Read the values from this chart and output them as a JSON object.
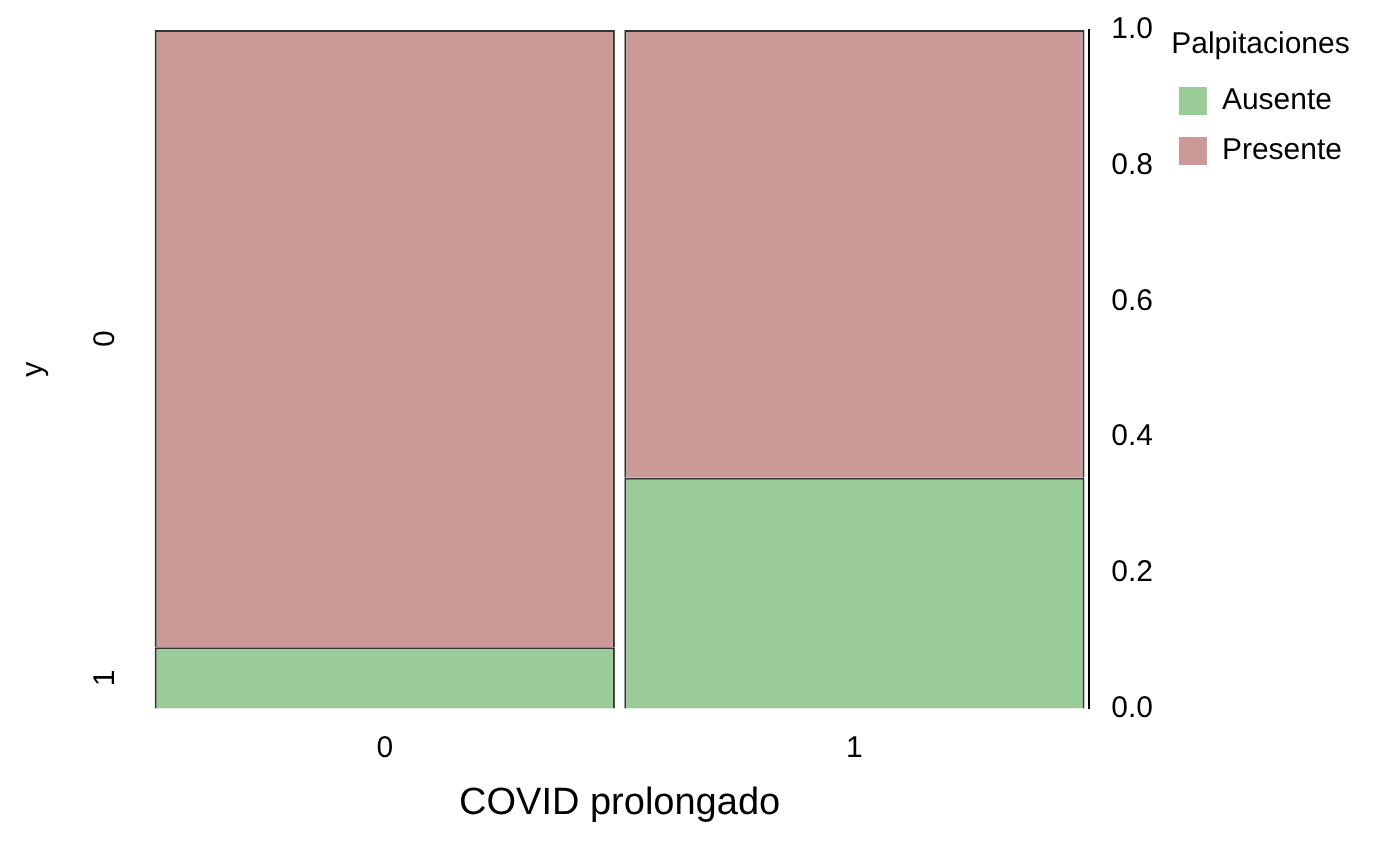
{
  "chart_data": {
    "type": "bar",
    "stacked": true,
    "xlabel": "COVID prolongado",
    "ylabel": "y",
    "legend_title": "Palpitaciones",
    "legend": "top right",
    "grid": false,
    "categories": [
      "0",
      "1"
    ],
    "series": [
      {
        "name": "Ausente",
        "color": "#99cc99",
        "values": [
          0.09,
          0.34
        ]
      },
      {
        "name": "Presente",
        "color": "#cc9999",
        "values": [
          0.91,
          0.66
        ]
      }
    ],
    "ylim": [
      0,
      1
    ],
    "yticks": [
      {
        "value": 0,
        "label": "0.0"
      },
      {
        "value": 0.2,
        "label": "0.2"
      },
      {
        "value": 0.4,
        "label": "0.4"
      },
      {
        "value": 0.6,
        "label": "0.6"
      },
      {
        "value": 0.8,
        "label": "0.8"
      },
      {
        "value": 1,
        "label": "1.0"
      }
    ],
    "annotations": [
      "1",
      "0"
    ]
  }
}
